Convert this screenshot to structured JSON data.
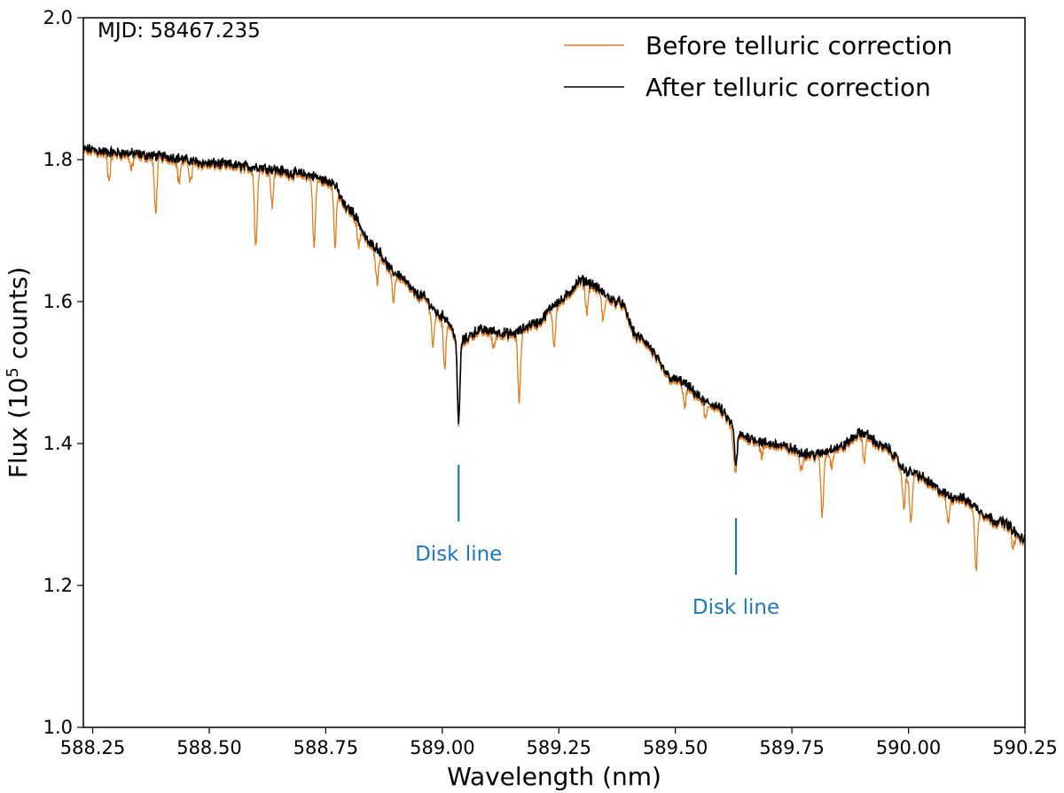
{
  "chart_data": {
    "type": "line",
    "xlabel": "Wavelength (nm)",
    "ylabel_prefix": "Flux (10",
    "ylabel_exponent": "5",
    "ylabel_suffix": " counts)",
    "xlim": [
      588.23,
      590.25
    ],
    "ylim": [
      1.0,
      2.0
    ],
    "xticks": [
      588.25,
      588.5,
      588.75,
      589.0,
      589.25,
      589.5,
      589.75,
      590.0,
      590.25
    ],
    "xtick_labels": [
      "588.25",
      "588.50",
      "588.75",
      "589.00",
      "589.25",
      "589.50",
      "589.75",
      "590.00",
      "590.25"
    ],
    "yticks": [
      1.0,
      1.2,
      1.4,
      1.6,
      1.8,
      2.0
    ],
    "ytick_labels": [
      "1.0",
      "1.2",
      "1.4",
      "1.6",
      "1.8",
      "2.0"
    ],
    "annotation_text": "MJD: 58467.235",
    "legend_location": "upper right",
    "continuum": {
      "x": [
        588.23,
        588.3,
        588.4,
        588.5,
        588.6,
        588.7,
        588.76,
        588.8,
        588.85,
        588.9,
        588.95,
        589.0,
        589.04,
        589.08,
        589.15,
        589.2,
        589.25,
        589.3,
        589.38,
        589.42,
        589.5,
        589.58,
        589.65,
        589.7,
        589.8,
        589.85,
        589.9,
        589.95,
        590.0,
        590.1,
        590.2,
        590.25
      ],
      "y": [
        1.815,
        1.81,
        1.805,
        1.795,
        1.79,
        1.78,
        1.77,
        1.73,
        1.68,
        1.64,
        1.61,
        1.58,
        1.545,
        1.56,
        1.555,
        1.57,
        1.6,
        1.63,
        1.6,
        1.55,
        1.49,
        1.455,
        1.41,
        1.4,
        1.385,
        1.395,
        1.415,
        1.395,
        1.36,
        1.325,
        1.29,
        1.265
      ]
    },
    "telluric_lines": [
      {
        "x": 588.285,
        "depth": 0.035
      },
      {
        "x": 588.333,
        "depth": 0.02
      },
      {
        "x": 588.385,
        "depth": 0.075
      },
      {
        "x": 588.435,
        "depth": 0.03
      },
      {
        "x": 588.46,
        "depth": 0.025
      },
      {
        "x": 588.6,
        "depth": 0.11
      },
      {
        "x": 588.635,
        "depth": 0.045
      },
      {
        "x": 588.725,
        "depth": 0.095
      },
      {
        "x": 588.77,
        "depth": 0.08
      },
      {
        "x": 588.82,
        "depth": 0.03
      },
      {
        "x": 588.86,
        "depth": 0.045
      },
      {
        "x": 588.895,
        "depth": 0.035
      },
      {
        "x": 588.98,
        "depth": 0.05
      },
      {
        "x": 589.005,
        "depth": 0.065
      },
      {
        "x": 589.11,
        "depth": 0.02
      },
      {
        "x": 589.165,
        "depth": 0.095
      },
      {
        "x": 589.24,
        "depth": 0.055
      },
      {
        "x": 589.31,
        "depth": 0.04
      },
      {
        "x": 589.345,
        "depth": 0.035
      },
      {
        "x": 589.52,
        "depth": 0.03
      },
      {
        "x": 589.565,
        "depth": 0.02
      },
      {
        "x": 589.625,
        "depth": 0.025
      },
      {
        "x": 589.685,
        "depth": 0.015
      },
      {
        "x": 589.77,
        "depth": 0.02
      },
      {
        "x": 589.815,
        "depth": 0.085
      },
      {
        "x": 589.835,
        "depth": 0.02
      },
      {
        "x": 589.905,
        "depth": 0.035
      },
      {
        "x": 589.99,
        "depth": 0.05
      },
      {
        "x": 590.005,
        "depth": 0.07
      },
      {
        "x": 590.085,
        "depth": 0.035
      },
      {
        "x": 590.145,
        "depth": 0.085
      },
      {
        "x": 590.225,
        "depth": 0.02
      }
    ],
    "disk_lines": [
      {
        "x": 589.035,
        "depth": 0.115,
        "label_y": 1.245
      },
      {
        "x": 589.63,
        "depth": 0.05,
        "label_y": 1.17
      }
    ],
    "marker_label": "Disk line",
    "disk_markers": [
      {
        "x": 589.035,
        "y_top": 1.37,
        "y_bottom": 1.29
      },
      {
        "x": 589.63,
        "y_top": 1.295,
        "y_bottom": 1.215
      }
    ],
    "series": [
      {
        "name": "Before telluric correction",
        "color": "#e07b20"
      },
      {
        "name": "After telluric correction",
        "color": "#000000"
      }
    ],
    "annotation_color": "#1f77b4"
  }
}
